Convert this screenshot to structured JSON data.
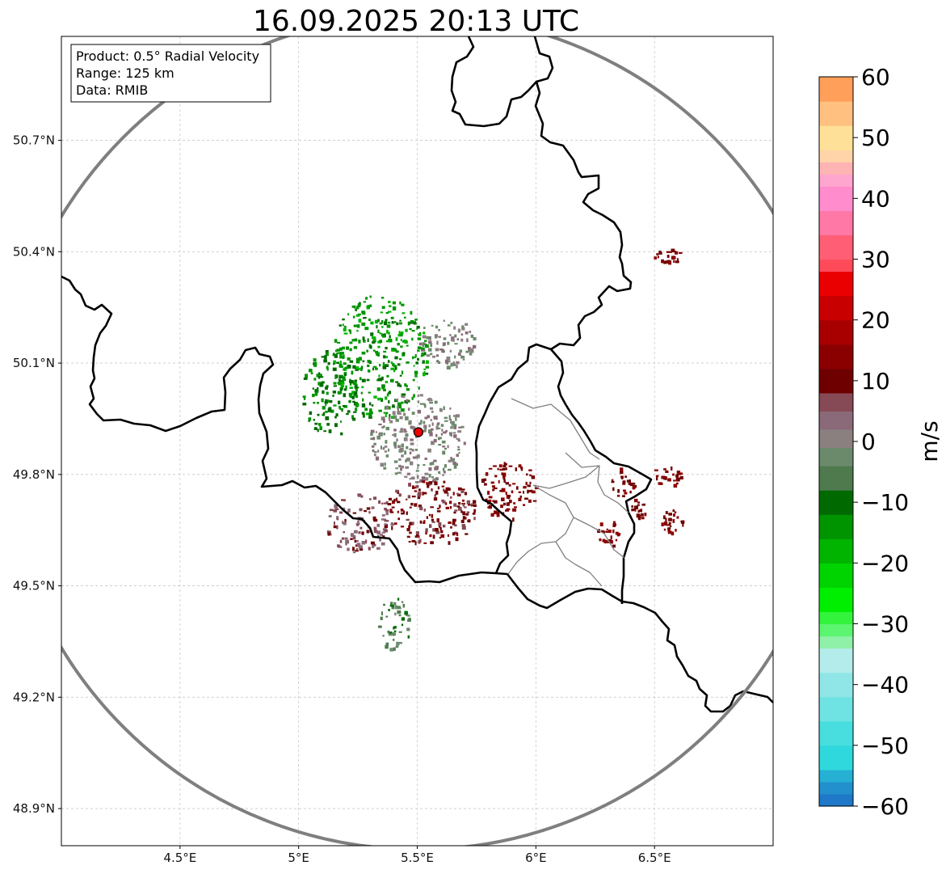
{
  "chart_data": {
    "type": "heatmap",
    "title": "16.09.2025 20:13 UTC",
    "info_box": [
      "Product: 0.5° Radial Velocity",
      "Range: 125 km",
      "Data: RMIB"
    ],
    "x_axis": {
      "range": [
        4.0,
        7.0
      ],
      "ticks": [
        4.5,
        5.0,
        5.5,
        6.0,
        6.5
      ],
      "tick_labels": [
        "4.5°E",
        "5°E",
        "5.5°E",
        "6°E",
        "6.5°E"
      ]
    },
    "y_axis": {
      "range": [
        48.8,
        50.98
      ],
      "ticks": [
        48.9,
        49.2,
        49.5,
        49.8,
        50.1,
        50.4,
        50.7
      ],
      "tick_labels": [
        "48.9°N",
        "49.2°N",
        "49.5°N",
        "49.8°N",
        "50.1°N",
        "50.4°N",
        "50.7°N"
      ]
    },
    "radar_site": {
      "lon": 5.505,
      "lat": 49.914
    },
    "range_km": 125,
    "colorbar": {
      "label": "m/s",
      "range": [
        -60,
        60
      ],
      "ticks": [
        -60,
        -50,
        -40,
        -30,
        -20,
        -10,
        0,
        10,
        20,
        30,
        40,
        50,
        60
      ],
      "tick_labels": [
        "−60",
        "−50",
        "−40",
        "−30",
        "−20",
        "−10",
        "0",
        "10",
        "20",
        "30",
        "40",
        "50",
        "60"
      ],
      "bands": [
        {
          "from": -60,
          "to": -58,
          "color": "#1f78c8"
        },
        {
          "from": -58,
          "to": -56,
          "color": "#2290cc"
        },
        {
          "from": -56,
          "to": -54,
          "color": "#25b0d4"
        },
        {
          "from": -54,
          "to": -50,
          "color": "#2ed8dc"
        },
        {
          "from": -50,
          "to": -46,
          "color": "#48dedf"
        },
        {
          "from": -46,
          "to": -42,
          "color": "#6fe3e3"
        },
        {
          "from": -42,
          "to": -38,
          "color": "#90e6e6"
        },
        {
          "from": -38,
          "to": -34,
          "color": "#b4ecec"
        },
        {
          "from": -34,
          "to": -32,
          "color": "#8ff0a8"
        },
        {
          "from": -32,
          "to": -30,
          "color": "#5cf570"
        },
        {
          "from": -30,
          "to": -28,
          "color": "#33f33d"
        },
        {
          "from": -28,
          "to": -24,
          "color": "#00ef00"
        },
        {
          "from": -24,
          "to": -20,
          "color": "#00d400"
        },
        {
          "from": -20,
          "to": -16,
          "color": "#00b400"
        },
        {
          "from": -16,
          "to": -12,
          "color": "#009400"
        },
        {
          "from": -12,
          "to": -8,
          "color": "#006a00"
        },
        {
          "from": -8,
          "to": -4,
          "color": "#4e7a4e"
        },
        {
          "from": -4,
          "to": -1,
          "color": "#6b8a6b"
        },
        {
          "from": -1,
          "to": 2,
          "color": "#8a8080"
        },
        {
          "from": 2,
          "to": 5,
          "color": "#8a6a78"
        },
        {
          "from": 5,
          "to": 8,
          "color": "#854a55"
        },
        {
          "from": 8,
          "to": 12,
          "color": "#6e0000"
        },
        {
          "from": 12,
          "to": 16,
          "color": "#8a0000"
        },
        {
          "from": 16,
          "to": 20,
          "color": "#a80000"
        },
        {
          "from": 20,
          "to": 24,
          "color": "#c80000"
        },
        {
          "from": 24,
          "to": 28,
          "color": "#ea0000"
        },
        {
          "from": 28,
          "to": 30,
          "color": "#ff4a5a"
        },
        {
          "from": 30,
          "to": 34,
          "color": "#ff5e74"
        },
        {
          "from": 34,
          "to": 38,
          "color": "#ff78a6"
        },
        {
          "from": 38,
          "to": 42,
          "color": "#ff8ccd"
        },
        {
          "from": 42,
          "to": 44,
          "color": "#ffa6cf"
        },
        {
          "from": 44,
          "to": 46,
          "color": "#ffb4b4"
        },
        {
          "from": 46,
          "to": 48,
          "color": "#ffd4a8"
        },
        {
          "from": 48,
          "to": 52,
          "color": "#ffe098"
        },
        {
          "from": 52,
          "to": 56,
          "color": "#ffc080"
        },
        {
          "from": 56,
          "to": 60,
          "color": "#ff9f5a"
        }
      ]
    },
    "echo_regions": [
      {
        "name": "receding-core-north",
        "lon": 5.34,
        "lat": 50.12,
        "rx": 0.2,
        "ry": 0.17,
        "v": -14
      },
      {
        "name": "receding-west",
        "lon": 5.13,
        "lat": 50.02,
        "rx": 0.12,
        "ry": 0.12,
        "v": -12
      },
      {
        "name": "near-zero-center",
        "lon": 5.5,
        "lat": 49.9,
        "rx": 0.2,
        "ry": 0.12,
        "v": 0
      },
      {
        "name": "near-zero-northeast",
        "lon": 5.62,
        "lat": 50.16,
        "rx": 0.12,
        "ry": 0.07,
        "v": 0
      },
      {
        "name": "approaching-east",
        "lon": 5.88,
        "lat": 49.76,
        "rx": 0.12,
        "ry": 0.08,
        "v": 12
      },
      {
        "name": "approaching-south",
        "lon": 5.55,
        "lat": 49.7,
        "rx": 0.2,
        "ry": 0.09,
        "v": 10
      },
      {
        "name": "mixed-southwest",
        "lon": 5.25,
        "lat": 49.67,
        "rx": 0.14,
        "ry": 0.08,
        "v": 6
      },
      {
        "name": "ground-clutter-south",
        "lon": 5.4,
        "lat": 49.4,
        "rx": 0.07,
        "ry": 0.07,
        "v": -5
      },
      {
        "name": "cell-6.35e",
        "lon": 6.36,
        "lat": 49.78,
        "rx": 0.05,
        "ry": 0.04,
        "v": 12
      },
      {
        "name": "cell-6.55e",
        "lon": 6.55,
        "lat": 49.8,
        "rx": 0.06,
        "ry": 0.03,
        "v": 12
      },
      {
        "name": "cell-6.57e-south",
        "lon": 6.57,
        "lat": 49.68,
        "rx": 0.05,
        "ry": 0.04,
        "v": 12
      },
      {
        "name": "cell-6.28e",
        "lon": 6.3,
        "lat": 49.64,
        "rx": 0.05,
        "ry": 0.04,
        "v": 12
      },
      {
        "name": "cell-6.43e",
        "lon": 6.43,
        "lat": 49.71,
        "rx": 0.03,
        "ry": 0.03,
        "v": 12
      },
      {
        "name": "cell-6.63e-ne",
        "lon": 6.55,
        "lat": 50.39,
        "rx": 0.06,
        "ry": 0.02,
        "v": 12
      }
    ]
  }
}
